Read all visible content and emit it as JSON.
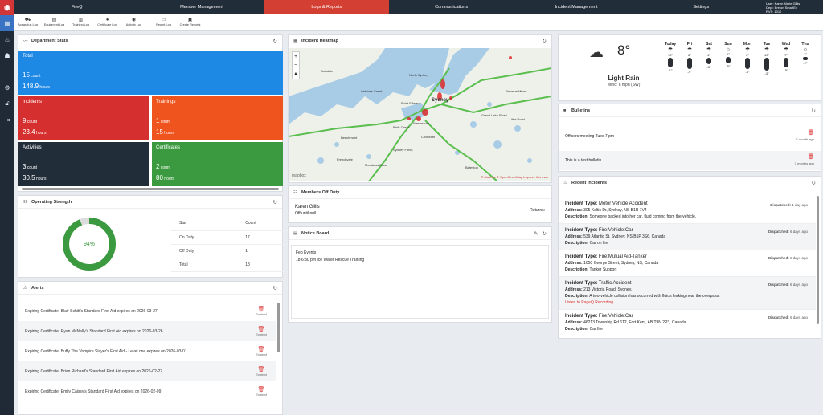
{
  "rail": {
    "items": [
      "grid-icon",
      "fire-icon",
      "team-icon",
      "settings-icon",
      "lock-icon",
      "logout-icon"
    ]
  },
  "topnav": {
    "items": [
      "FireQ",
      "Member Management",
      "Logs & Reports",
      "Communications",
      "Incident Management",
      "Settings"
    ],
    "active": "Logs & Reports"
  },
  "user": {
    "line1": "User: Karen Marie Gillis",
    "line2": "Dept: Breton SmartEx",
    "line3": "RVS: 1010"
  },
  "subnav": {
    "items": [
      "Apparatus Log",
      "Equipment Log",
      "Training Log",
      "Certificate Log",
      "Activity Log",
      "Report Log",
      "Create Reports"
    ]
  },
  "dept_stats": {
    "title": "Department Stats",
    "tiles": [
      {
        "name": "Total",
        "count": "15",
        "count_unit": "count",
        "hours": "148.9",
        "hours_unit": "hours",
        "color": "#1e88e5"
      },
      {
        "name": "Incidents",
        "count": "9",
        "count_unit": "count",
        "hours": "23.4",
        "hours_unit": "hours",
        "color": "#d62f2f"
      },
      {
        "name": "Trainings",
        "count": "1",
        "count_unit": "count",
        "hours": "15",
        "hours_unit": "hours",
        "color": "#f0541e"
      },
      {
        "name": "Activities",
        "count": "3",
        "count_unit": "count",
        "hours": "30.5",
        "hours_unit": "hours",
        "color": "#222d3a"
      },
      {
        "name": "Certificates",
        "count": "2",
        "count_unit": "count",
        "hours": "80",
        "hours_unit": "hours",
        "color": "#3b9a3f"
      }
    ]
  },
  "operating_strength": {
    "title": "Operating Strength",
    "percent_label": "94%",
    "percent": 94,
    "headers": [
      "Stat",
      "Count"
    ],
    "rows": [
      {
        "stat": "On Duty",
        "count": "17"
      },
      {
        "stat": "Off Duty",
        "count": "1"
      },
      {
        "stat": "Total",
        "count": "18"
      }
    ]
  },
  "alerts": {
    "title": "Alerts",
    "status": "Expired",
    "items": [
      "Expiring Certificate: Blair Schitt's Standard First Aid expires on 2026-03-27",
      "Expiring Certificate: Ryan McNally's Standard First Aid expires on 2026-03-26",
      "Expiring Certificate: Buffy The Vampire Slayer's First Aid - Level one expires on 2026-03-01",
      "Expiring Certificate: Brian Richard's Standard First Aid expires on 2026-02-22",
      "Expiring Certificate: Emily Caissy's Standard First Aid expires on 2026-02-09"
    ]
  },
  "heatmap": {
    "title": "Incident Heatmap",
    "labels": [
      "Sydney",
      "Sydney Forks",
      "Coxheath",
      "Westmount",
      "North Sydney",
      "Point Edward",
      "Balls Creek",
      "Leitches Creek",
      "Boisdale",
      "Grand Lake Road",
      "Reserve Mines",
      "Meadows Road",
      "Frenchvale",
      "Beechmont",
      "Bateston",
      "Little Pond"
    ],
    "attribution": "© Mapbox © OpenStreetMap  Improve this map",
    "brand": "mapbox"
  },
  "members_off_duty": {
    "title": "Members Off Duty",
    "name": "Karen Gillis",
    "status": "Off until null",
    "returns_label": "Returns:"
  },
  "notice_board": {
    "title": "Notice Board",
    "heading": "Feb Events",
    "line": "18  6:30 pm Ice Water Rescue Training"
  },
  "weather": {
    "temp": "8°",
    "condition": "Light Rain",
    "wind": "Wind: 8 mph (SW)",
    "days": [
      {
        "d": "Today",
        "hi": "10°",
        "lo": "-1°",
        "h1": 14,
        "h2": 12
      },
      {
        "d": "Fri",
        "hi": "8°",
        "lo": "-4°",
        "h1": 0,
        "h2": 14
      },
      {
        "d": "Sat",
        "hi": "4°",
        "lo": "-3°",
        "h1": 0,
        "h2": 8
      },
      {
        "d": "Sun",
        "hi": "1°",
        "lo": "-5°",
        "h1": 0,
        "h2": 8
      },
      {
        "d": "Mon",
        "hi": "6°",
        "lo": "-6°",
        "h1": 0,
        "h2": 14
      },
      {
        "d": "Tue",
        "hi": "13°",
        "lo": "-3°",
        "h1": 0,
        "h2": 16
      },
      {
        "d": "Wed",
        "hi": "7°",
        "lo": "-5°",
        "h1": 0,
        "h2": 12
      },
      {
        "d": "Thu",
        "hi": "1°",
        "lo": "-2°",
        "h1": 0,
        "h2": 4
      }
    ]
  },
  "bulletins": {
    "title": "Bulletins",
    "items": [
      {
        "text": "Officers meeting Tues 7 pm",
        "ago": "1 month ago"
      },
      {
        "text": "This is a test bulletin",
        "ago": "3 months ago"
      }
    ]
  },
  "recent_incidents": {
    "title": "Recent Incidents",
    "items": [
      {
        "type": "Motor Vehicle Accident",
        "address": "305 Keltic Dr, Sydney, NS B1R 1V4",
        "desc": "Someone backed into her car, fluid coming from the vehicle.",
        "dispatched": "1 day ago",
        "link": ""
      },
      {
        "type": "Fire:Vehicle:Car",
        "address": "539 Atlantic St, Sydney, NS B1P 3S6, Canada",
        "desc": "Car on fire",
        "dispatched": "6 days ago",
        "link": ""
      },
      {
        "type": "Fire:Mutual Aid-Tanker",
        "address": "1050 George Street, Sydney, NS, Canada",
        "desc": "Tanker Support",
        "dispatched": "6 days ago",
        "link": ""
      },
      {
        "type": "Traffic Accident",
        "address": "213 Victoria Road, Sydney,",
        "desc": "A two-vehicle collision has occurred with fluids leaking near the overpass.",
        "dispatched": "6 days ago",
        "link": "Listen to PageQ Recording"
      },
      {
        "type": "Fire:Vehicle:Car",
        "address": "46213 Township Rd 612, Fort Kent, AB T9N 2P3, Canada",
        "desc": "Car fire",
        "dispatched": "6 days ago",
        "link": ""
      }
    ]
  },
  "labels": {
    "incident_type": "Incident Type:",
    "address": "Address:",
    "description": "Description:",
    "dispatched": "Dispatched:"
  }
}
